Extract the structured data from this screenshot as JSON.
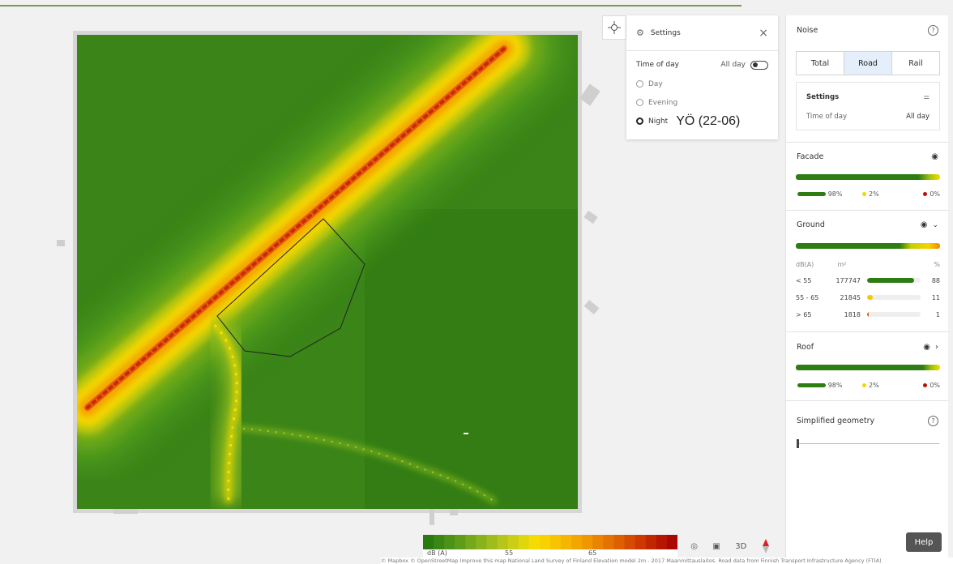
{
  "map": {
    "locate_button": "crosshair-icon",
    "colors": {
      "low": "#2f7d14",
      "mid": "#f5d800",
      "high": "#c22000"
    }
  },
  "settings_popup": {
    "title": "Settings",
    "time_of_day_label": "Time of day",
    "all_day_label": "All day",
    "options": [
      "Day",
      "Evening",
      "Night"
    ],
    "selected": "Night",
    "night_annotation": "YÖ (22-06)"
  },
  "panel": {
    "noise_title": "Noise",
    "tabs": [
      "Total",
      "Road",
      "Rail"
    ],
    "active_tab": "Road",
    "settings_box": {
      "title": "Settings",
      "time_of_day_label": "Time of day",
      "time_of_day_value": "All day"
    },
    "facade": {
      "title": "Facade",
      "low_pct": "98%",
      "mid_pct": "2%",
      "high_pct": "0%"
    },
    "ground": {
      "title": "Ground",
      "col_db": "dB(A)",
      "col_m2": "m²",
      "col_pct": "%",
      "rows": [
        {
          "range": "< 55",
          "area": "177747",
          "pct": "88",
          "fraction": 0.88
        },
        {
          "range": "55 - 65",
          "area": "21845",
          "pct": "11",
          "fraction": 0.11
        },
        {
          "range": "> 65",
          "area": "1818",
          "pct": "1",
          "fraction": 0.01
        }
      ]
    },
    "roof": {
      "title": "Roof",
      "low_pct": "98%",
      "mid_pct": "2%",
      "high_pct": "0%"
    },
    "simplified_title": "Simplified geometry",
    "slider_value": 0
  },
  "legend": {
    "unit": "dB (A)",
    "tick_55": "55",
    "tick_65": "65"
  },
  "tools": {
    "view3d_label": "3D"
  },
  "help_label": "Help",
  "attribution": "© Mapbox © OpenStreetMap Improve this map National Land Survey of Finland Elevation model 2m - 2017 Maanmittauslaitos. Road data from Finnish Transport Infrastructure Agency (FTIA)"
}
